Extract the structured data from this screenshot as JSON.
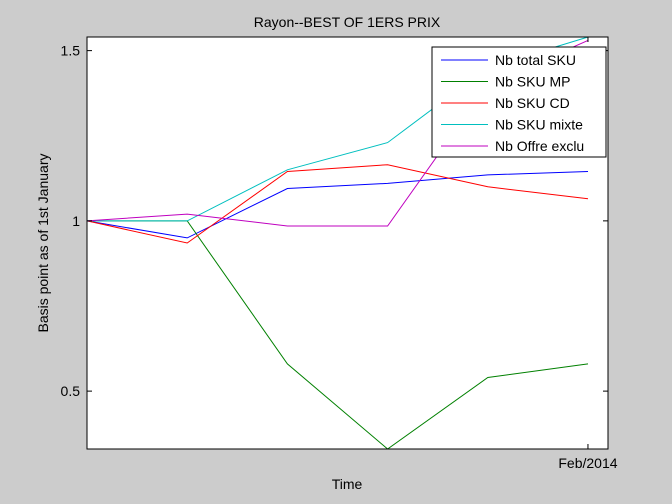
{
  "chart_data": {
    "type": "line",
    "title": "Rayon--BEST OF 1ERS PRIX",
    "xlabel": "Time",
    "ylabel": "Basis point as of 1st January",
    "x": [
      1,
      2,
      3,
      4,
      5,
      6
    ],
    "xlim": [
      1,
      6.2
    ],
    "x_tick_positions": [
      6
    ],
    "x_tick_labels": [
      "Feb/2014"
    ],
    "ylim": [
      0.33,
      1.54
    ],
    "y_ticks": [
      0.5,
      1,
      1.5
    ],
    "y_tick_labels": [
      "0.5",
      "1",
      "1.5"
    ],
    "grid": false,
    "legend_position": "top-right",
    "series": [
      {
        "name": "Nb total SKU",
        "color": "#0000ff",
        "values": [
          1.0,
          0.95,
          1.095,
          1.11,
          1.135,
          1.145
        ]
      },
      {
        "name": "Nb SKU MP",
        "color": "#008000",
        "values": [
          1.0,
          1.0,
          0.58,
          0.33,
          0.54,
          0.58
        ]
      },
      {
        "name": "Nb SKU CD",
        "color": "#ff0000",
        "values": [
          1.0,
          0.935,
          1.145,
          1.165,
          1.1,
          1.065
        ]
      },
      {
        "name": "Nb SKU mixte",
        "color": "#00bfbf",
        "values": [
          1.0,
          1.0,
          1.15,
          1.23,
          1.45,
          1.54
        ]
      },
      {
        "name": "Nb Offre exclu",
        "color": "#bf00bf",
        "values": [
          1.0,
          1.02,
          0.985,
          0.985,
          1.4,
          1.53
        ]
      }
    ]
  }
}
